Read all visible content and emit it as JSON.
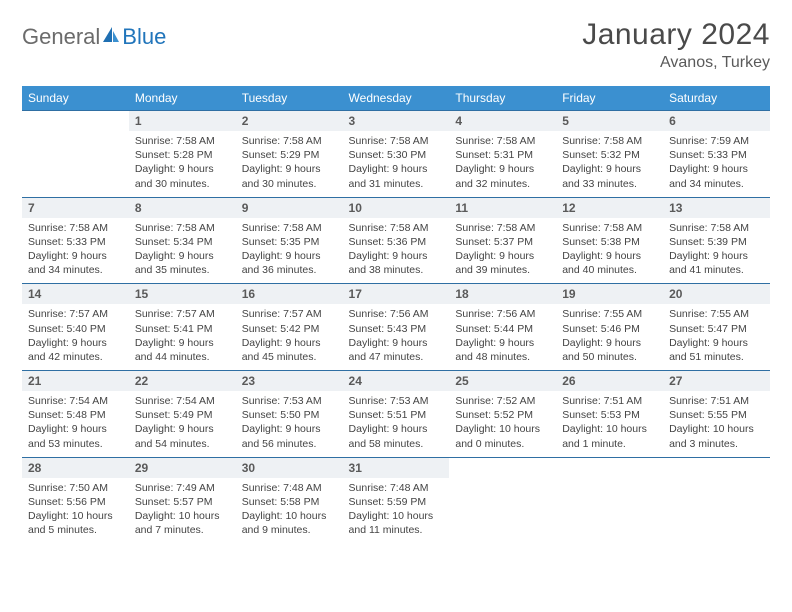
{
  "logo": {
    "text1": "General",
    "text2": "Blue"
  },
  "title": "January 2024",
  "location": "Avanos, Turkey",
  "colors": {
    "header_bg": "#3b90d0",
    "header_text": "#ffffff",
    "daynum_bg": "#eef1f4",
    "row_border": "#2f6fa3",
    "logo_gray": "#6b6b6b",
    "logo_blue": "#2175bb",
    "text": "#444444",
    "title_color": "#4a4a4a"
  },
  "typography": {
    "title_fontsize": 30,
    "location_fontsize": 16,
    "header_fontsize": 12,
    "daynum_fontsize": 12,
    "cell_fontsize": 10.5
  },
  "weekdays": [
    "Sunday",
    "Monday",
    "Tuesday",
    "Wednesday",
    "Thursday",
    "Friday",
    "Saturday"
  ],
  "weeks": [
    [
      null,
      {
        "n": "1",
        "l1": "Sunrise: 7:58 AM",
        "l2": "Sunset: 5:28 PM",
        "l3": "Daylight: 9 hours",
        "l4": "and 30 minutes."
      },
      {
        "n": "2",
        "l1": "Sunrise: 7:58 AM",
        "l2": "Sunset: 5:29 PM",
        "l3": "Daylight: 9 hours",
        "l4": "and 30 minutes."
      },
      {
        "n": "3",
        "l1": "Sunrise: 7:58 AM",
        "l2": "Sunset: 5:30 PM",
        "l3": "Daylight: 9 hours",
        "l4": "and 31 minutes."
      },
      {
        "n": "4",
        "l1": "Sunrise: 7:58 AM",
        "l2": "Sunset: 5:31 PM",
        "l3": "Daylight: 9 hours",
        "l4": "and 32 minutes."
      },
      {
        "n": "5",
        "l1": "Sunrise: 7:58 AM",
        "l2": "Sunset: 5:32 PM",
        "l3": "Daylight: 9 hours",
        "l4": "and 33 minutes."
      },
      {
        "n": "6",
        "l1": "Sunrise: 7:59 AM",
        "l2": "Sunset: 5:33 PM",
        "l3": "Daylight: 9 hours",
        "l4": "and 34 minutes."
      }
    ],
    [
      {
        "n": "7",
        "l1": "Sunrise: 7:58 AM",
        "l2": "Sunset: 5:33 PM",
        "l3": "Daylight: 9 hours",
        "l4": "and 34 minutes."
      },
      {
        "n": "8",
        "l1": "Sunrise: 7:58 AM",
        "l2": "Sunset: 5:34 PM",
        "l3": "Daylight: 9 hours",
        "l4": "and 35 minutes."
      },
      {
        "n": "9",
        "l1": "Sunrise: 7:58 AM",
        "l2": "Sunset: 5:35 PM",
        "l3": "Daylight: 9 hours",
        "l4": "and 36 minutes."
      },
      {
        "n": "10",
        "l1": "Sunrise: 7:58 AM",
        "l2": "Sunset: 5:36 PM",
        "l3": "Daylight: 9 hours",
        "l4": "and 38 minutes."
      },
      {
        "n": "11",
        "l1": "Sunrise: 7:58 AM",
        "l2": "Sunset: 5:37 PM",
        "l3": "Daylight: 9 hours",
        "l4": "and 39 minutes."
      },
      {
        "n": "12",
        "l1": "Sunrise: 7:58 AM",
        "l2": "Sunset: 5:38 PM",
        "l3": "Daylight: 9 hours",
        "l4": "and 40 minutes."
      },
      {
        "n": "13",
        "l1": "Sunrise: 7:58 AM",
        "l2": "Sunset: 5:39 PM",
        "l3": "Daylight: 9 hours",
        "l4": "and 41 minutes."
      }
    ],
    [
      {
        "n": "14",
        "l1": "Sunrise: 7:57 AM",
        "l2": "Sunset: 5:40 PM",
        "l3": "Daylight: 9 hours",
        "l4": "and 42 minutes."
      },
      {
        "n": "15",
        "l1": "Sunrise: 7:57 AM",
        "l2": "Sunset: 5:41 PM",
        "l3": "Daylight: 9 hours",
        "l4": "and 44 minutes."
      },
      {
        "n": "16",
        "l1": "Sunrise: 7:57 AM",
        "l2": "Sunset: 5:42 PM",
        "l3": "Daylight: 9 hours",
        "l4": "and 45 minutes."
      },
      {
        "n": "17",
        "l1": "Sunrise: 7:56 AM",
        "l2": "Sunset: 5:43 PM",
        "l3": "Daylight: 9 hours",
        "l4": "and 47 minutes."
      },
      {
        "n": "18",
        "l1": "Sunrise: 7:56 AM",
        "l2": "Sunset: 5:44 PM",
        "l3": "Daylight: 9 hours",
        "l4": "and 48 minutes."
      },
      {
        "n": "19",
        "l1": "Sunrise: 7:55 AM",
        "l2": "Sunset: 5:46 PM",
        "l3": "Daylight: 9 hours",
        "l4": "and 50 minutes."
      },
      {
        "n": "20",
        "l1": "Sunrise: 7:55 AM",
        "l2": "Sunset: 5:47 PM",
        "l3": "Daylight: 9 hours",
        "l4": "and 51 minutes."
      }
    ],
    [
      {
        "n": "21",
        "l1": "Sunrise: 7:54 AM",
        "l2": "Sunset: 5:48 PM",
        "l3": "Daylight: 9 hours",
        "l4": "and 53 minutes."
      },
      {
        "n": "22",
        "l1": "Sunrise: 7:54 AM",
        "l2": "Sunset: 5:49 PM",
        "l3": "Daylight: 9 hours",
        "l4": "and 54 minutes."
      },
      {
        "n": "23",
        "l1": "Sunrise: 7:53 AM",
        "l2": "Sunset: 5:50 PM",
        "l3": "Daylight: 9 hours",
        "l4": "and 56 minutes."
      },
      {
        "n": "24",
        "l1": "Sunrise: 7:53 AM",
        "l2": "Sunset: 5:51 PM",
        "l3": "Daylight: 9 hours",
        "l4": "and 58 minutes."
      },
      {
        "n": "25",
        "l1": "Sunrise: 7:52 AM",
        "l2": "Sunset: 5:52 PM",
        "l3": "Daylight: 10 hours",
        "l4": "and 0 minutes."
      },
      {
        "n": "26",
        "l1": "Sunrise: 7:51 AM",
        "l2": "Sunset: 5:53 PM",
        "l3": "Daylight: 10 hours",
        "l4": "and 1 minute."
      },
      {
        "n": "27",
        "l1": "Sunrise: 7:51 AM",
        "l2": "Sunset: 5:55 PM",
        "l3": "Daylight: 10 hours",
        "l4": "and 3 minutes."
      }
    ],
    [
      {
        "n": "28",
        "l1": "Sunrise: 7:50 AM",
        "l2": "Sunset: 5:56 PM",
        "l3": "Daylight: 10 hours",
        "l4": "and 5 minutes."
      },
      {
        "n": "29",
        "l1": "Sunrise: 7:49 AM",
        "l2": "Sunset: 5:57 PM",
        "l3": "Daylight: 10 hours",
        "l4": "and 7 minutes."
      },
      {
        "n": "30",
        "l1": "Sunrise: 7:48 AM",
        "l2": "Sunset: 5:58 PM",
        "l3": "Daylight: 10 hours",
        "l4": "and 9 minutes."
      },
      {
        "n": "31",
        "l1": "Sunrise: 7:48 AM",
        "l2": "Sunset: 5:59 PM",
        "l3": "Daylight: 10 hours",
        "l4": "and 11 minutes."
      },
      null,
      null,
      null
    ]
  ]
}
